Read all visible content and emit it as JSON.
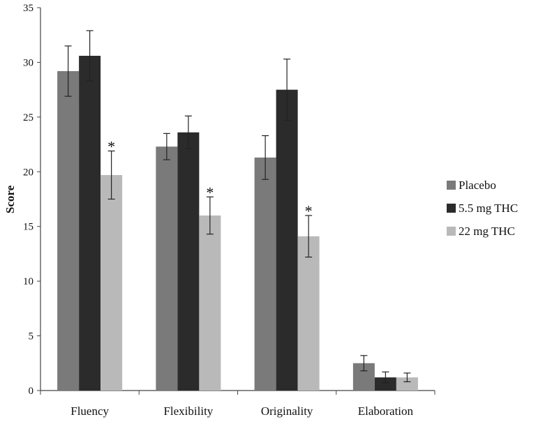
{
  "chart_data": {
    "type": "bar",
    "title": "",
    "xlabel": "",
    "ylabel": "Score",
    "ylim": [
      0,
      35
    ],
    "yticks": [
      0,
      5,
      10,
      15,
      20,
      25,
      30,
      35
    ],
    "categories": [
      "Fluency",
      "Flexibility",
      "Originality",
      "Elaboration"
    ],
    "series": [
      {
        "name": "Placebo",
        "color": "#7a7a7a",
        "values": [
          29.2,
          22.3,
          21.3,
          2.5
        ],
        "errors": [
          2.3,
          1.2,
          2.0,
          0.7
        ]
      },
      {
        "name": "5.5 mg THC",
        "color": "#2b2b2b",
        "values": [
          30.6,
          23.6,
          27.5,
          1.2
        ],
        "errors": [
          2.3,
          1.5,
          2.8,
          0.5
        ]
      },
      {
        "name": "22 mg THC",
        "color": "#b9b9b9",
        "values": [
          19.7,
          16.0,
          14.1,
          1.2
        ],
        "errors": [
          2.2,
          1.7,
          1.9,
          0.4
        ]
      }
    ],
    "annotations": [
      {
        "text": "*",
        "category": "Fluency",
        "series": "22 mg THC"
      },
      {
        "text": "*",
        "category": "Flexibility",
        "series": "22 mg THC"
      },
      {
        "text": "*",
        "category": "Originality",
        "series": "22 mg THC"
      }
    ],
    "grid": false,
    "legend_position": "right"
  }
}
